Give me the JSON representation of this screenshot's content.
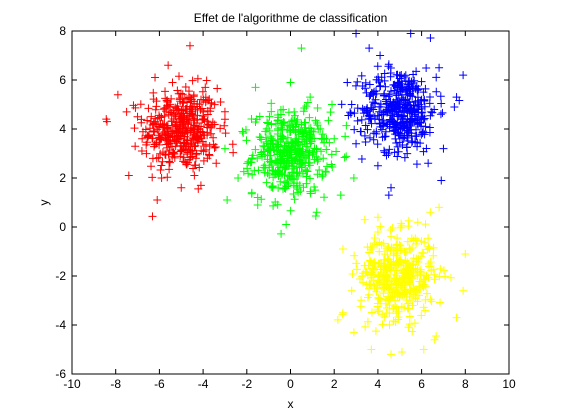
{
  "chart_data": {
    "type": "scatter",
    "title": "Effet de l'algorithme de classification",
    "xlabel": "x",
    "ylabel": "y",
    "xlim": [
      -10,
      10
    ],
    "ylim": [
      -6,
      8
    ],
    "xticks": [
      -10,
      -8,
      -6,
      -4,
      -2,
      0,
      2,
      4,
      6,
      8,
      10
    ],
    "yticks": [
      -6,
      -4,
      -2,
      0,
      2,
      4,
      6,
      8
    ],
    "grid": false,
    "legend": "none",
    "marker": "+",
    "series": [
      {
        "color": "#ff0000",
        "center": [
          -5,
          4
        ],
        "spread": 0.85,
        "points": [
          [
            -8.4,
            4.3
          ],
          [
            -7.9,
            5.4
          ],
          [
            -6.2,
            6.1
          ],
          [
            -4.6,
            7.4
          ],
          [
            -6.1,
            1.1
          ],
          [
            -7.4,
            2.1
          ],
          [
            -3.9,
            5.7
          ],
          [
            -3.2,
            5.1
          ],
          [
            -3.4,
            2.6
          ],
          [
            -4.1,
            1.7
          ],
          [
            -7.5,
            4.7
          ],
          [
            -5.4,
            5.9
          ],
          [
            -6.8,
            3.1
          ],
          [
            -3.7,
            3.3
          ],
          [
            -5.0,
            1.6
          ],
          [
            -5.6,
            6.6
          ],
          [
            -7.0,
            4.5
          ],
          [
            -4.4,
            2.1
          ],
          [
            -5.9,
            2.0
          ],
          [
            -3.0,
            4.4
          ]
        ]
      },
      {
        "color": "#00ff00",
        "center": [
          0,
          3
        ],
        "spread": 0.85,
        "points": [
          [
            0.5,
            7.3
          ],
          [
            -2.9,
            1.1
          ],
          [
            -3.0,
            3.2
          ],
          [
            2.9,
            2.0
          ],
          [
            -0.2,
            0.1
          ],
          [
            2.5,
            3.7
          ],
          [
            1.9,
            5.0
          ],
          [
            -1.6,
            5.7
          ],
          [
            0.0,
            5.9
          ],
          [
            -2.2,
            3.9
          ],
          [
            2.3,
            1.3
          ],
          [
            -2.4,
            2.0
          ],
          [
            1.2,
            0.6
          ],
          [
            -1.5,
            0.9
          ],
          [
            2.0,
            3.6
          ],
          [
            0.9,
            5.3
          ]
        ]
      },
      {
        "color": "#0000ff",
        "center": [
          5,
          4.8
        ],
        "spread": 0.85,
        "points": [
          [
            3.0,
            7.9
          ],
          [
            5.5,
            7.9
          ],
          [
            7.9,
            6.2
          ],
          [
            4.6,
            1.6
          ],
          [
            4.5,
            1.3
          ],
          [
            6.9,
            1.9
          ],
          [
            3.0,
            3.4
          ],
          [
            3.6,
            7.3
          ],
          [
            2.8,
            5.0
          ],
          [
            7.5,
            4.9
          ],
          [
            7.0,
            3.2
          ],
          [
            6.8,
            6.5
          ],
          [
            4.0,
            2.5
          ],
          [
            2.6,
            5.9
          ],
          [
            6.3,
            2.6
          ],
          [
            4.1,
            7.0
          ],
          [
            7.6,
            5.3
          ],
          [
            3.2,
            3.9
          ]
        ]
      },
      {
        "color": "#ffff00",
        "center": [
          4.9,
          -2
        ],
        "spread": 0.85,
        "points": [
          [
            2.4,
            -0.9
          ],
          [
            3.7,
            -5.0
          ],
          [
            5.1,
            -5.1
          ],
          [
            7.6,
            -3.7
          ],
          [
            8.0,
            -1.1
          ],
          [
            6.4,
            0.6
          ],
          [
            6.8,
            0.8
          ],
          [
            2.8,
            -2.6
          ],
          [
            2.4,
            -3.5
          ],
          [
            4.0,
            0.4
          ],
          [
            7.9,
            -2.6
          ],
          [
            6.1,
            -5.0
          ],
          [
            2.9,
            -4.3
          ],
          [
            6.6,
            -4.6
          ],
          [
            3.4,
            0.3
          ],
          [
            4.6,
            -5.2
          ]
        ]
      }
    ]
  }
}
